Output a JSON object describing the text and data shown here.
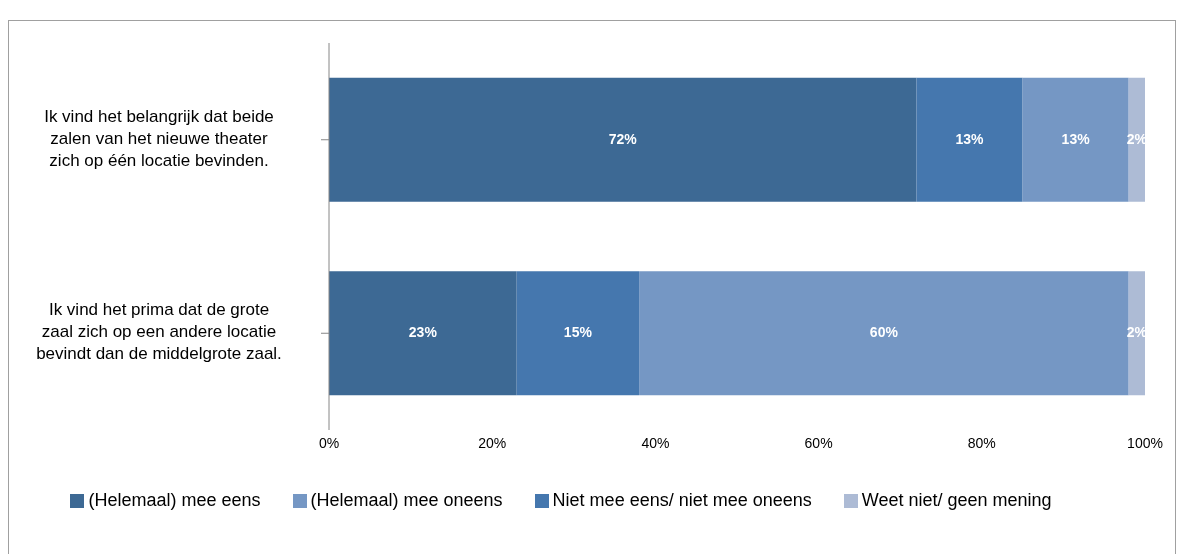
{
  "chart_data": {
    "type": "bar",
    "orientation": "horizontal",
    "stacked": true,
    "categories": [
      "Ik vind het belangrijk dat beide zalen van het nieuwe theater zich op één locatie bevinden.",
      "Ik vind het prima dat de grote zaal zich op een andere locatie bevindt dan de middelgrote zaal."
    ],
    "series": [
      {
        "name": "(Helemaal) mee eens",
        "color": "#3d6994",
        "values": [
          72,
          23
        ]
      },
      {
        "name": "Niet mee eens/ niet mee oneens",
        "color": "#4577ae",
        "values": [
          13,
          15
        ]
      },
      {
        "name": "(Helemaal) mee oneens",
        "color": "#7597c4",
        "values": [
          13,
          60
        ]
      },
      {
        "name": "Weet niet/ geen mening",
        "color": "#adbbd5",
        "values": [
          2,
          2
        ]
      }
    ],
    "value_labels": [
      [
        "72%",
        "23%"
      ],
      [
        "13%",
        "15%"
      ],
      [
        "13%",
        "60%"
      ],
      [
        "2%",
        "2%"
      ]
    ],
    "xlim": [
      0,
      100
    ],
    "xticks": [
      {
        "value": 0,
        "label": "0%"
      },
      {
        "value": 20,
        "label": "20%"
      },
      {
        "value": 40,
        "label": "40%"
      },
      {
        "value": 60,
        "label": "60%"
      },
      {
        "value": 80,
        "label": "80%"
      },
      {
        "value": 100,
        "label": "100%"
      }
    ],
    "grid": false,
    "legend": "bottom"
  }
}
